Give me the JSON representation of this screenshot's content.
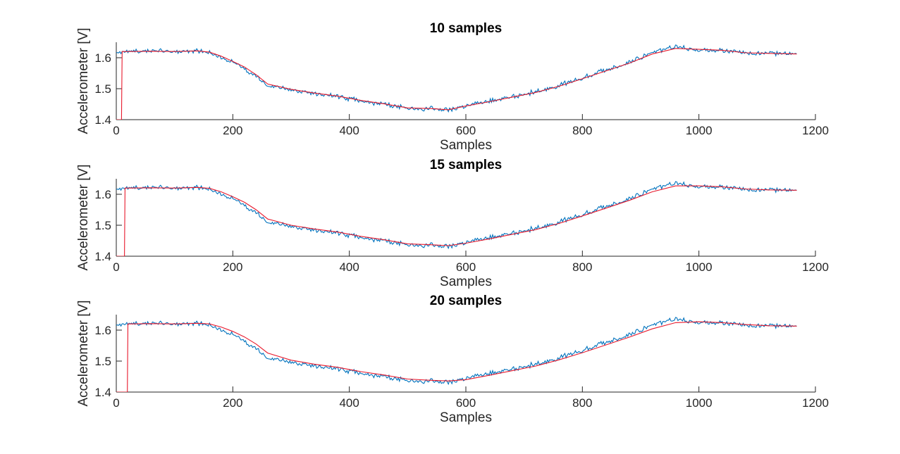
{
  "chart_data": [
    {
      "type": "line",
      "title": "10 samples",
      "xlabel": "Samples",
      "ylabel": "Accelerometer [V]",
      "xlim": [
        0,
        1200
      ],
      "ylim": [
        1.4,
        1.65
      ],
      "xticks": [
        "0",
        "200",
        "400",
        "600",
        "800",
        "1000",
        "1200"
      ],
      "yticks": [
        "1.4",
        "1.5",
        "1.6"
      ],
      "window": 10,
      "series": [
        {
          "color": "#0072BD",
          "x": [
            0,
            20,
            60,
            100,
            140,
            160,
            180,
            200,
            220,
            240,
            260,
            300,
            340,
            380,
            420,
            460,
            500,
            540,
            570,
            600,
            640,
            680,
            720,
            760,
            800,
            840,
            880,
            920,
            960,
            1000,
            1040,
            1080,
            1120,
            1168
          ],
          "y": [
            1.62,
            1.62,
            1.622,
            1.62,
            1.623,
            1.615,
            1.6,
            1.585,
            1.565,
            1.54,
            1.51,
            1.495,
            1.485,
            1.475,
            1.46,
            1.45,
            1.435,
            1.435,
            1.43,
            1.445,
            1.46,
            1.475,
            1.49,
            1.51,
            1.535,
            1.56,
            1.585,
            1.615,
            1.635,
            1.625,
            1.625,
            1.615,
            1.615,
            1.612
          ]
        },
        {
          "color": "#e8192c",
          "x": [
            0,
            9,
            10,
            20,
            60,
            100,
            140,
            160,
            180,
            200,
            220,
            240,
            260,
            300,
            340,
            380,
            420,
            460,
            500,
            540,
            570,
            600,
            640,
            680,
            720,
            760,
            800,
            840,
            880,
            920,
            960,
            1000,
            1040,
            1080,
            1120,
            1168
          ],
          "y": [
            1.4,
            1.4,
            1.62,
            1.62,
            1.621,
            1.62,
            1.622,
            1.618,
            1.605,
            1.588,
            1.57,
            1.545,
            1.515,
            1.498,
            1.486,
            1.476,
            1.462,
            1.451,
            1.438,
            1.436,
            1.432,
            1.444,
            1.458,
            1.473,
            1.488,
            1.508,
            1.532,
            1.557,
            1.582,
            1.612,
            1.63,
            1.627,
            1.624,
            1.616,
            1.614,
            1.612
          ]
        }
      ]
    },
    {
      "type": "line",
      "title": "15 samples",
      "xlabel": "Samples",
      "ylabel": "Accelerometer [V]",
      "xlim": [
        0,
        1200
      ],
      "ylim": [
        1.4,
        1.65
      ],
      "xticks": [
        "0",
        "200",
        "400",
        "600",
        "800",
        "1000",
        "1200"
      ],
      "yticks": [
        "1.4",
        "1.5",
        "1.6"
      ],
      "window": 15,
      "series": [
        {
          "color": "#0072BD",
          "x": [
            0,
            20,
            60,
            100,
            140,
            160,
            180,
            200,
            220,
            240,
            260,
            300,
            340,
            380,
            420,
            460,
            500,
            540,
            570,
            600,
            640,
            680,
            720,
            760,
            800,
            840,
            880,
            920,
            960,
            1000,
            1040,
            1080,
            1120,
            1168
          ],
          "y": [
            1.62,
            1.62,
            1.622,
            1.62,
            1.623,
            1.615,
            1.6,
            1.585,
            1.565,
            1.54,
            1.51,
            1.495,
            1.485,
            1.475,
            1.46,
            1.45,
            1.435,
            1.435,
            1.43,
            1.445,
            1.46,
            1.475,
            1.49,
            1.51,
            1.535,
            1.56,
            1.585,
            1.615,
            1.635,
            1.625,
            1.625,
            1.615,
            1.615,
            1.612
          ]
        },
        {
          "color": "#e8192c",
          "x": [
            0,
            14,
            15,
            20,
            60,
            100,
            140,
            160,
            180,
            200,
            220,
            240,
            260,
            300,
            340,
            380,
            420,
            460,
            500,
            540,
            570,
            600,
            640,
            680,
            720,
            760,
            800,
            840,
            880,
            920,
            960,
            1000,
            1040,
            1080,
            1120,
            1168
          ],
          "y": [
            1.4,
            1.4,
            1.62,
            1.62,
            1.621,
            1.62,
            1.622,
            1.619,
            1.608,
            1.592,
            1.574,
            1.55,
            1.52,
            1.5,
            1.488,
            1.478,
            1.464,
            1.453,
            1.44,
            1.437,
            1.434,
            1.442,
            1.456,
            1.471,
            1.486,
            1.506,
            1.53,
            1.555,
            1.58,
            1.608,
            1.627,
            1.627,
            1.624,
            1.617,
            1.614,
            1.613
          ]
        }
      ]
    },
    {
      "type": "line",
      "title": "20 samples",
      "xlabel": "Samples",
      "ylabel": "Accelerometer [V]",
      "xlim": [
        0,
        1200
      ],
      "ylim": [
        1.4,
        1.65
      ],
      "xticks": [
        "0",
        "200",
        "400",
        "600",
        "800",
        "1000",
        "1200"
      ],
      "yticks": [
        "1.4",
        "1.5",
        "1.6"
      ],
      "window": 20,
      "series": [
        {
          "color": "#0072BD",
          "x": [
            0,
            20,
            60,
            100,
            140,
            160,
            180,
            200,
            220,
            240,
            260,
            300,
            340,
            380,
            420,
            460,
            500,
            540,
            570,
            600,
            640,
            680,
            720,
            760,
            800,
            840,
            880,
            920,
            960,
            1000,
            1040,
            1080,
            1120,
            1168
          ],
          "y": [
            1.62,
            1.62,
            1.622,
            1.62,
            1.623,
            1.615,
            1.6,
            1.585,
            1.565,
            1.54,
            1.51,
            1.495,
            1.485,
            1.475,
            1.46,
            1.45,
            1.435,
            1.435,
            1.43,
            1.445,
            1.46,
            1.475,
            1.49,
            1.51,
            1.535,
            1.56,
            1.585,
            1.615,
            1.635,
            1.625,
            1.625,
            1.615,
            1.615,
            1.612
          ]
        },
        {
          "color": "#e8192c",
          "x": [
            0,
            19,
            20,
            60,
            100,
            140,
            160,
            180,
            200,
            220,
            240,
            260,
            300,
            340,
            380,
            420,
            460,
            500,
            540,
            570,
            600,
            640,
            680,
            720,
            760,
            800,
            840,
            880,
            920,
            960,
            1000,
            1040,
            1080,
            1120,
            1168
          ],
          "y": [
            1.4,
            1.4,
            1.62,
            1.621,
            1.62,
            1.622,
            1.62,
            1.61,
            1.596,
            1.578,
            1.555,
            1.526,
            1.503,
            1.49,
            1.48,
            1.466,
            1.455,
            1.442,
            1.438,
            1.436,
            1.44,
            1.454,
            1.469,
            1.484,
            1.504,
            1.527,
            1.552,
            1.577,
            1.604,
            1.624,
            1.627,
            1.624,
            1.618,
            1.614,
            1.613
          ]
        }
      ]
    }
  ]
}
